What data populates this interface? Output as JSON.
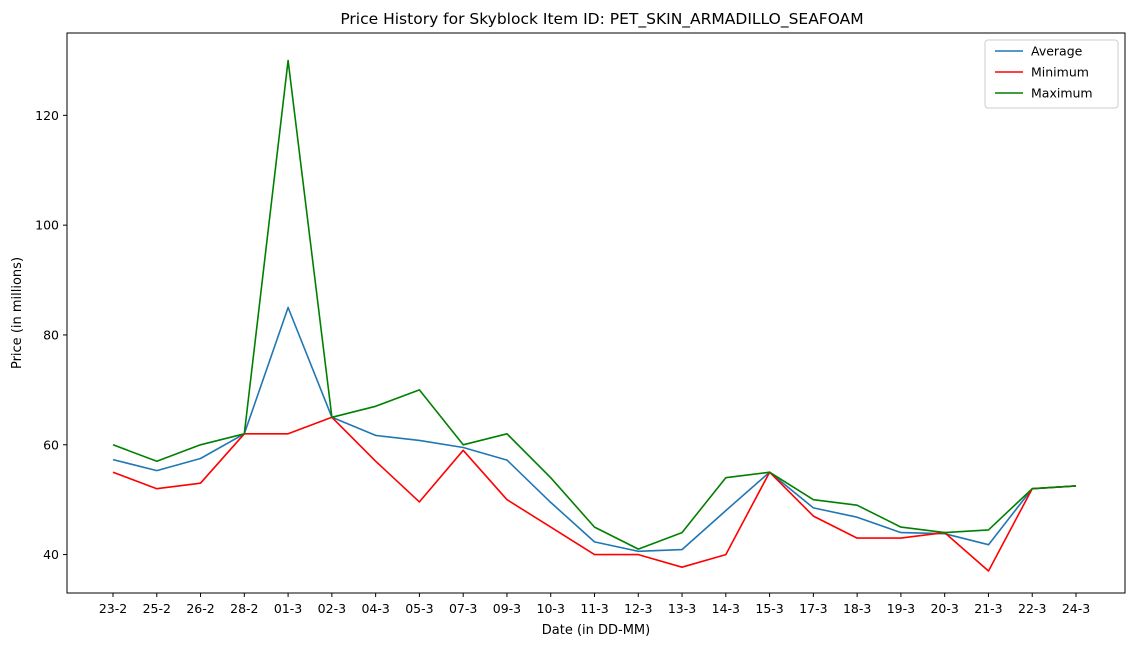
{
  "chart_data": {
    "type": "line",
    "title": "Price History for Skyblock Item ID: PET_SKIN_ARMADILLO_SEAFOAM",
    "xlabel": "Date (in DD-MM)",
    "ylabel": "Price (in millions)",
    "categories": [
      "23-2",
      "25-2",
      "26-2",
      "28-2",
      "01-3",
      "02-3",
      "04-3",
      "05-3",
      "07-3",
      "09-3",
      "10-3",
      "11-3",
      "12-3",
      "13-3",
      "14-3",
      "15-3",
      "17-3",
      "18-3",
      "19-3",
      "20-3",
      "21-3",
      "22-3",
      "24-3"
    ],
    "ylim": [
      33,
      135
    ],
    "yticks": [
      40,
      60,
      80,
      100,
      120
    ],
    "grid": false,
    "legend_position": "top-right",
    "series": [
      {
        "name": "Average",
        "color": "#1f77b4",
        "values": [
          57.3,
          55.3,
          57.5,
          62,
          85,
          65,
          61.7,
          60.8,
          59.5,
          57.2,
          49.5,
          42.3,
          40.6,
          40.9,
          48,
          55,
          48.5,
          46.8,
          44,
          43.8,
          41.8,
          52,
          52.5
        ]
      },
      {
        "name": "Minimum",
        "color": "#ff0000",
        "values": [
          55,
          52,
          53,
          62,
          62,
          65,
          57,
          49.6,
          59,
          50,
          45,
          40,
          40,
          37.7,
          40,
          55,
          47,
          43,
          43,
          44,
          37,
          52,
          52.5
        ]
      },
      {
        "name": "Maximum",
        "color": "#008000",
        "values": [
          60,
          57,
          60,
          62,
          130,
          65,
          67,
          70,
          60,
          62,
          54,
          45,
          41,
          44,
          54,
          55,
          50,
          49,
          45,
          44,
          44.5,
          52,
          52.5
        ]
      }
    ]
  }
}
